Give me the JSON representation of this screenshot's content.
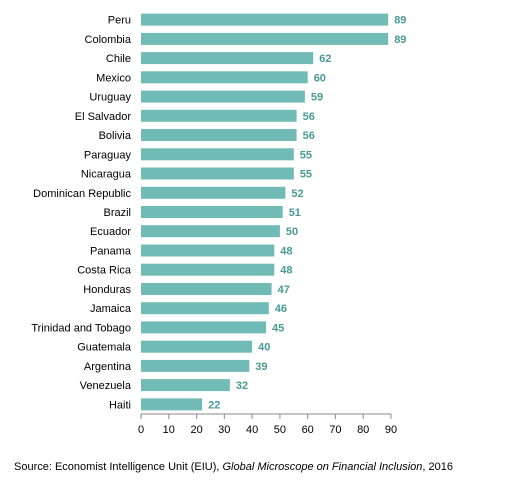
{
  "chart_data": {
    "type": "bar",
    "orientation": "horizontal",
    "categories": [
      "Peru",
      "Colombia",
      "Chile",
      "Mexico",
      "Uruguay",
      "El Salvador",
      "Bolivia",
      "Paraguay",
      "Nicaragua",
      "Dominican Republic",
      "Brazil",
      "Ecuador",
      "Panama",
      "Costa Rica",
      "Honduras",
      "Jamaica",
      "Trinidad and Tobago",
      "Guatemala",
      "Argentina",
      "Venezuela",
      "Haiti"
    ],
    "values": [
      89,
      89,
      62,
      60,
      59,
      56,
      56,
      55,
      55,
      52,
      51,
      50,
      48,
      48,
      47,
      46,
      45,
      40,
      39,
      32,
      22
    ],
    "xlim": [
      0,
      90
    ],
    "xticks": [
      0,
      10,
      20,
      30,
      40,
      50,
      60,
      70,
      80,
      90
    ],
    "grid": false,
    "legend": "none",
    "bar_color": "#70bbb6",
    "value_label_color": "#4a9a94"
  },
  "source": {
    "prefix": "Source: Economist Intelligence Unit (EIU), ",
    "italic": "Global Microscope  on Financial Inclusion",
    "suffix": ", 2016"
  }
}
